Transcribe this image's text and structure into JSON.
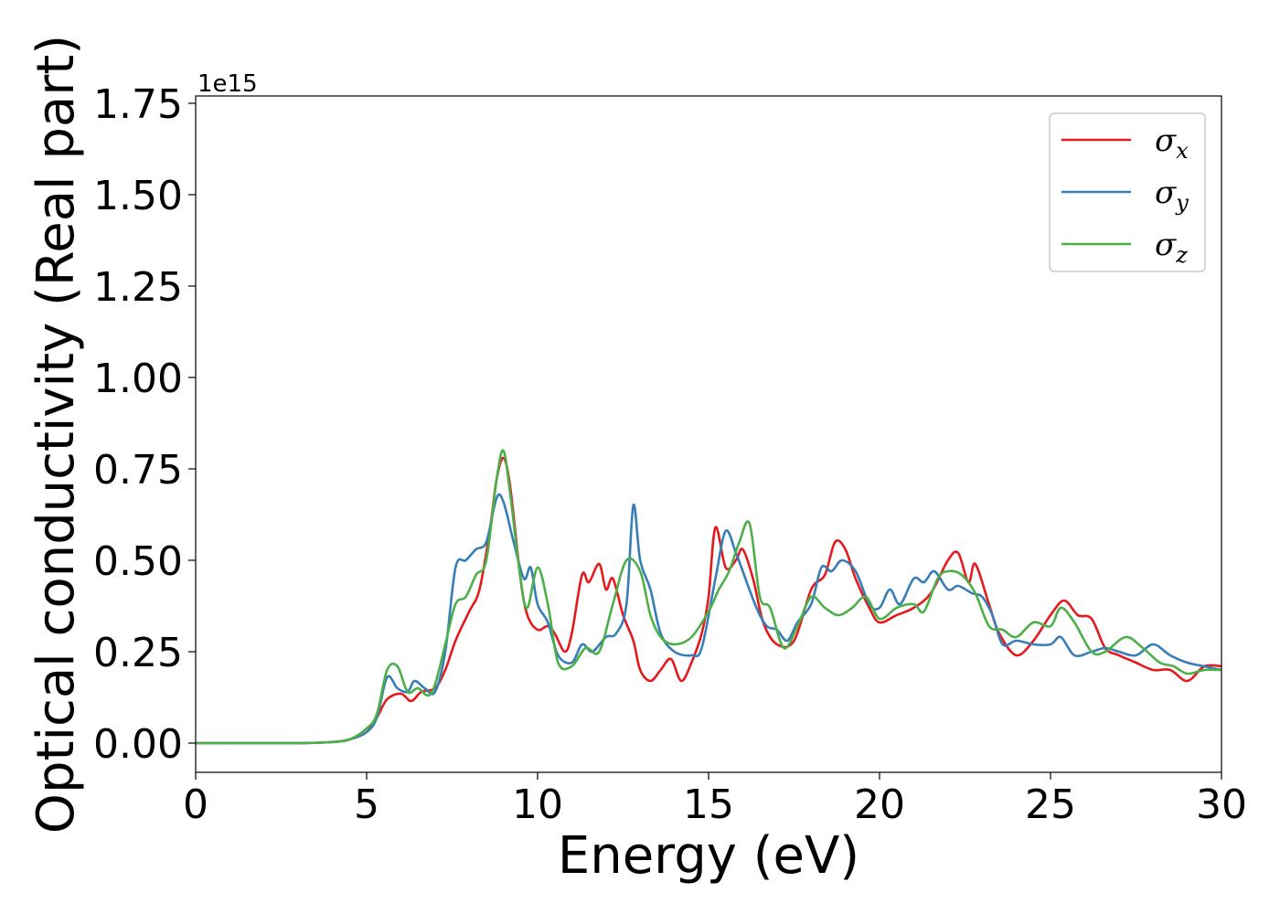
{
  "chart_data": {
    "type": "line",
    "xlabel": "Energy (eV)",
    "ylabel": "Optical conductivity (Real part)",
    "y_offset_text": "1e15",
    "xlim": [
      0,
      30
    ],
    "ylim": [
      -0.08,
      1.77
    ],
    "x_ticks": [
      0,
      5,
      10,
      15,
      20,
      25,
      30
    ],
    "x_tick_labels": [
      "0",
      "5",
      "10",
      "15",
      "20",
      "25",
      "30"
    ],
    "y_ticks": [
      0,
      0.25,
      0.5,
      0.75,
      1.0,
      1.25,
      1.5,
      1.75
    ],
    "y_tick_labels": [
      "0.00",
      "0.25",
      "0.50",
      "0.75",
      "1.00",
      "1.25",
      "1.50",
      "1.75"
    ],
    "grid": false,
    "legend_position": "top-right",
    "series": [
      {
        "name": "σx",
        "legend_symbol": "σ",
        "legend_subscript": "x",
        "color": "#e41a1c",
        "points": [
          [
            0,
            0
          ],
          [
            3,
            0
          ],
          [
            4,
            0.003
          ],
          [
            4.5,
            0.01
          ],
          [
            5,
            0.03
          ],
          [
            5.3,
            0.07
          ],
          [
            5.6,
            0.12
          ],
          [
            6,
            0.135
          ],
          [
            6.3,
            0.115
          ],
          [
            6.6,
            0.14
          ],
          [
            7,
            0.15
          ],
          [
            7.3,
            0.2
          ],
          [
            7.6,
            0.28
          ],
          [
            8,
            0.36
          ],
          [
            8.3,
            0.42
          ],
          [
            8.6,
            0.58
          ],
          [
            8.8,
            0.72
          ],
          [
            9,
            0.78
          ],
          [
            9.2,
            0.7
          ],
          [
            9.5,
            0.45
          ],
          [
            9.7,
            0.35
          ],
          [
            10,
            0.31
          ],
          [
            10.3,
            0.32
          ],
          [
            10.5,
            0.3
          ],
          [
            10.8,
            0.25
          ],
          [
            11,
            0.3
          ],
          [
            11.3,
            0.46
          ],
          [
            11.5,
            0.44
          ],
          [
            11.8,
            0.49
          ],
          [
            12,
            0.42
          ],
          [
            12.2,
            0.45
          ],
          [
            12.5,
            0.35
          ],
          [
            12.8,
            0.28
          ],
          [
            13,
            0.2
          ],
          [
            13.3,
            0.17
          ],
          [
            13.6,
            0.2
          ],
          [
            13.9,
            0.23
          ],
          [
            14.2,
            0.17
          ],
          [
            14.5,
            0.22
          ],
          [
            14.8,
            0.3
          ],
          [
            15,
            0.4
          ],
          [
            15.2,
            0.59
          ],
          [
            15.5,
            0.48
          ],
          [
            15.8,
            0.5
          ],
          [
            16,
            0.53
          ],
          [
            16.3,
            0.45
          ],
          [
            16.6,
            0.33
          ],
          [
            17,
            0.27
          ],
          [
            17.5,
            0.28
          ],
          [
            18,
            0.42
          ],
          [
            18.4,
            0.46
          ],
          [
            18.7,
            0.55
          ],
          [
            19,
            0.53
          ],
          [
            19.3,
            0.45
          ],
          [
            19.7,
            0.37
          ],
          [
            20,
            0.33
          ],
          [
            20.5,
            0.35
          ],
          [
            21,
            0.37
          ],
          [
            21.5,
            0.41
          ],
          [
            22,
            0.5
          ],
          [
            22.3,
            0.52
          ],
          [
            22.6,
            0.44
          ],
          [
            22.8,
            0.49
          ],
          [
            23.2,
            0.38
          ],
          [
            23.5,
            0.3
          ],
          [
            24,
            0.24
          ],
          [
            24.5,
            0.28
          ],
          [
            25,
            0.35
          ],
          [
            25.4,
            0.39
          ],
          [
            25.8,
            0.35
          ],
          [
            26.2,
            0.34
          ],
          [
            26.6,
            0.26
          ],
          [
            27,
            0.24
          ],
          [
            27.5,
            0.22
          ],
          [
            28,
            0.2
          ],
          [
            28.5,
            0.2
          ],
          [
            29,
            0.17
          ],
          [
            29.5,
            0.21
          ],
          [
            30,
            0.21
          ]
        ]
      },
      {
        "name": "σy",
        "legend_symbol": "σ",
        "legend_subscript": "y",
        "color": "#377eb8",
        "points": [
          [
            0,
            0
          ],
          [
            3,
            0
          ],
          [
            4,
            0.003
          ],
          [
            4.5,
            0.01
          ],
          [
            5,
            0.03
          ],
          [
            5.3,
            0.07
          ],
          [
            5.6,
            0.18
          ],
          [
            5.9,
            0.15
          ],
          [
            6.2,
            0.14
          ],
          [
            6.4,
            0.17
          ],
          [
            6.7,
            0.15
          ],
          [
            7,
            0.14
          ],
          [
            7.3,
            0.25
          ],
          [
            7.6,
            0.48
          ],
          [
            7.9,
            0.5
          ],
          [
            8.2,
            0.53
          ],
          [
            8.5,
            0.55
          ],
          [
            8.8,
            0.67
          ],
          [
            9,
            0.66
          ],
          [
            9.3,
            0.55
          ],
          [
            9.6,
            0.45
          ],
          [
            9.8,
            0.48
          ],
          [
            10,
            0.38
          ],
          [
            10.3,
            0.33
          ],
          [
            10.6,
            0.24
          ],
          [
            11,
            0.22
          ],
          [
            11.3,
            0.27
          ],
          [
            11.6,
            0.25
          ],
          [
            12,
            0.29
          ],
          [
            12.3,
            0.3
          ],
          [
            12.6,
            0.38
          ],
          [
            12.8,
            0.65
          ],
          [
            13,
            0.5
          ],
          [
            13.3,
            0.42
          ],
          [
            13.6,
            0.3
          ],
          [
            14,
            0.25
          ],
          [
            14.5,
            0.24
          ],
          [
            14.8,
            0.26
          ],
          [
            15.2,
            0.45
          ],
          [
            15.5,
            0.58
          ],
          [
            15.8,
            0.52
          ],
          [
            16,
            0.47
          ],
          [
            16.4,
            0.37
          ],
          [
            16.7,
            0.32
          ],
          [
            17,
            0.31
          ],
          [
            17.3,
            0.28
          ],
          [
            17.6,
            0.33
          ],
          [
            18,
            0.38
          ],
          [
            18.3,
            0.48
          ],
          [
            18.6,
            0.47
          ],
          [
            18.9,
            0.5
          ],
          [
            19.3,
            0.47
          ],
          [
            19.7,
            0.38
          ],
          [
            20,
            0.37
          ],
          [
            20.3,
            0.42
          ],
          [
            20.6,
            0.38
          ],
          [
            21,
            0.45
          ],
          [
            21.3,
            0.44
          ],
          [
            21.6,
            0.47
          ],
          [
            22,
            0.42
          ],
          [
            22.3,
            0.43
          ],
          [
            22.7,
            0.41
          ],
          [
            23,
            0.4
          ],
          [
            23.3,
            0.35
          ],
          [
            23.6,
            0.27
          ],
          [
            24,
            0.28
          ],
          [
            24.5,
            0.27
          ],
          [
            25,
            0.27
          ],
          [
            25.3,
            0.29
          ],
          [
            25.7,
            0.24
          ],
          [
            26.2,
            0.25
          ],
          [
            26.6,
            0.26
          ],
          [
            27,
            0.25
          ],
          [
            27.5,
            0.24
          ],
          [
            28,
            0.27
          ],
          [
            28.5,
            0.24
          ],
          [
            29,
            0.22
          ],
          [
            29.5,
            0.21
          ],
          [
            30,
            0.2
          ]
        ]
      },
      {
        "name": "σz",
        "legend_symbol": "σ",
        "legend_subscript": "z",
        "color": "#4daf4a",
        "points": [
          [
            0,
            0
          ],
          [
            3,
            0
          ],
          [
            4,
            0.003
          ],
          [
            4.5,
            0.01
          ],
          [
            5,
            0.04
          ],
          [
            5.3,
            0.08
          ],
          [
            5.6,
            0.2
          ],
          [
            5.9,
            0.21
          ],
          [
            6.2,
            0.14
          ],
          [
            6.5,
            0.15
          ],
          [
            6.8,
            0.13
          ],
          [
            7,
            0.16
          ],
          [
            7.3,
            0.27
          ],
          [
            7.6,
            0.38
          ],
          [
            7.9,
            0.4
          ],
          [
            8.2,
            0.46
          ],
          [
            8.5,
            0.5
          ],
          [
            8.8,
            0.72
          ],
          [
            9,
            0.8
          ],
          [
            9.2,
            0.68
          ],
          [
            9.5,
            0.45
          ],
          [
            9.7,
            0.37
          ],
          [
            10,
            0.48
          ],
          [
            10.3,
            0.38
          ],
          [
            10.6,
            0.22
          ],
          [
            11,
            0.21
          ],
          [
            11.4,
            0.26
          ],
          [
            11.8,
            0.25
          ],
          [
            12.2,
            0.38
          ],
          [
            12.6,
            0.5
          ],
          [
            13,
            0.47
          ],
          [
            13.3,
            0.35
          ],
          [
            13.6,
            0.29
          ],
          [
            14,
            0.27
          ],
          [
            14.5,
            0.29
          ],
          [
            15,
            0.36
          ],
          [
            15.3,
            0.42
          ],
          [
            15.6,
            0.47
          ],
          [
            15.9,
            0.55
          ],
          [
            16.2,
            0.6
          ],
          [
            16.5,
            0.4
          ],
          [
            16.8,
            0.37
          ],
          [
            17.2,
            0.26
          ],
          [
            17.6,
            0.32
          ],
          [
            18,
            0.4
          ],
          [
            18.4,
            0.37
          ],
          [
            18.8,
            0.35
          ],
          [
            19.2,
            0.37
          ],
          [
            19.6,
            0.4
          ],
          [
            20,
            0.34
          ],
          [
            20.5,
            0.37
          ],
          [
            21,
            0.38
          ],
          [
            21.3,
            0.36
          ],
          [
            21.7,
            0.45
          ],
          [
            22,
            0.47
          ],
          [
            22.4,
            0.46
          ],
          [
            22.8,
            0.41
          ],
          [
            23.2,
            0.32
          ],
          [
            23.6,
            0.31
          ],
          [
            24,
            0.29
          ],
          [
            24.5,
            0.33
          ],
          [
            25,
            0.32
          ],
          [
            25.3,
            0.37
          ],
          [
            25.7,
            0.33
          ],
          [
            26.2,
            0.25
          ],
          [
            26.6,
            0.25
          ],
          [
            27.2,
            0.29
          ],
          [
            27.7,
            0.26
          ],
          [
            28.2,
            0.22
          ],
          [
            28.6,
            0.21
          ],
          [
            29,
            0.19
          ],
          [
            29.5,
            0.2
          ],
          [
            30,
            0.2
          ]
        ]
      }
    ]
  }
}
